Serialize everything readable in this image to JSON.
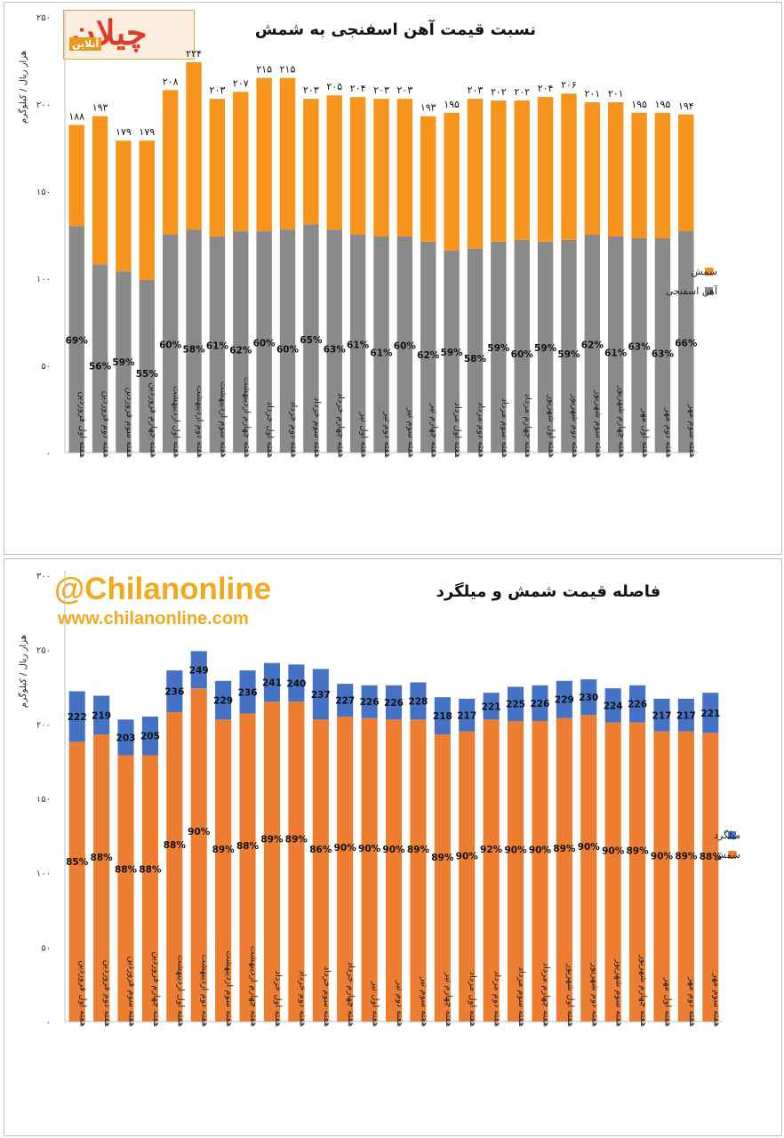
{
  "chart_data": [
    {
      "type": "bar",
      "stacked": true,
      "title": "نسبت قیمت آهن اسفنجی به شمش",
      "ylabel": "هزار ریال / کیلوگرم",
      "ylim": [
        0,
        250
      ],
      "yticks": [
        0,
        50,
        100,
        150,
        200,
        250
      ],
      "ytick_labels": [
        "۰",
        "۵۰",
        "۱۰۰",
        "۱۵۰",
        "۲۰۰",
        "۲۵۰"
      ],
      "grid": false,
      "legend_position": "right",
      "categories": [
        "هفته اول فروردین",
        "هفته دوم فروردین",
        "هفته سوم فروردین",
        "هفته چهارم فروردین",
        "هفته اول اردیبهشت",
        "هفته دوم اردیبهشت",
        "هفته سوم اردیبهشت",
        "هفته چهارم اردیبهشت",
        "هفته اول خرداد",
        "هفته دوم خرداد",
        "هفته سوم خرداد",
        "هفته چهارم خرداد",
        "هفته اول تیر",
        "هفته دوم تیر",
        "هفته سوم تیر",
        "هفته چهارم تیر",
        "هفته اول مرداد",
        "هفته دوم مرداد",
        "هفته سوم مرداد",
        "هفته چهارم مرداد",
        "هفته اول شهریور",
        "هفته دوم شهریور",
        "هفته سوم شهریور",
        "هفته چهارم شهریور",
        "هفته اول مهر",
        "هفته دوم مهر",
        "هفته سوم مهر"
      ],
      "totals": [
        188,
        193,
        179,
        179,
        208,
        224,
        203,
        207,
        215,
        215,
        203,
        205,
        204,
        203,
        203,
        193,
        195,
        203,
        202,
        202,
        204,
        206,
        201,
        201,
        195,
        195,
        194
      ],
      "total_labels": [
        "۱۸۸",
        "۱۹۳",
        "۱۷۹",
        "۱۷۹",
        "۲۰۸",
        "۲۲۴",
        "۲۰۳",
        "۲۰۷",
        "۲۱۵",
        "۲۱۵",
        "۲۰۳",
        "۲۰۵",
        "۲۰۴",
        "۲۰۳",
        "۲۰۳",
        "۱۹۳",
        "۱۹۵",
        "۲۰۳",
        "۲۰۲",
        "۲۰۲",
        "۲۰۴",
        "۲۰۶",
        "۲۰۱",
        "۲۰۱",
        "۱۹۵",
        "۱۹۵",
        "۱۹۴"
      ],
      "series": [
        {
          "name": "آهن اسفنجی",
          "color": "#8a8a8a",
          "values": [
            130,
            108,
            104,
            99,
            125,
            128,
            124,
            127,
            127,
            128,
            131,
            128,
            125,
            124,
            124,
            121,
            116,
            117,
            121,
            122,
            121,
            122,
            125,
            124,
            123,
            123,
            127
          ],
          "labels": [
            "69%",
            "56%",
            "59%",
            "55%",
            "60%",
            "58%",
            "61%",
            "62%",
            "60%",
            "60%",
            "65%",
            "63%",
            "61%",
            "61%",
            "60%",
            "62%",
            "59%",
            "58%",
            "59%",
            "60%",
            "59%",
            "59%",
            "62%",
            "61%",
            "63%",
            "63%",
            "66%"
          ]
        },
        {
          "name": "شمش",
          "color": "#f7941d",
          "values": [
            58,
            85,
            75,
            80,
            83,
            96,
            79,
            80,
            88,
            87,
            72,
            77,
            79,
            79,
            79,
            72,
            79,
            86,
            81,
            80,
            83,
            84,
            76,
            77,
            72,
            72,
            67
          ]
        }
      ],
      "branding": {
        "logo_text": "چیلان",
        "logo_subtext": "آنلاین"
      }
    },
    {
      "type": "bar",
      "stacked": true,
      "title": "فاصله  قیمت شمش و میلگرد",
      "ylabel": "هزار ریال / کیلوگرم",
      "ylim": [
        0,
        300
      ],
      "yticks": [
        0,
        50,
        100,
        150,
        200,
        250,
        300
      ],
      "ytick_labels": [
        "۰",
        "۵۰",
        "۱۰۰",
        "۱۵۰",
        "۲۰۰",
        "۲۵۰",
        "۳۰۰"
      ],
      "grid": false,
      "legend_position": "right",
      "categories": [
        "هفته اول فروردین",
        "هفته دوم فروردین",
        "هفته سوم فروردین",
        "هفته چهارم فروردین",
        "هفته اول اردیبهشت",
        "هفته دوم اردیبهشت",
        "هفته سوم اردیبهشت",
        "هفته چهارم اردیبهشت",
        "هفته اول خرداد",
        "هفته دوم خرداد",
        "هفته سوم خرداد",
        "هفته چهارم خرداد",
        "هفته اول تیر",
        "هفته دوم تیر",
        "هفته سوم تیر",
        "هفته چهارم تیر",
        "هفته اول مرداد",
        "هفته دوم مرداد",
        "هفته سوم مرداد",
        "هفته چهارم مرداد",
        "هفته اول شهریور",
        "هفته دوم شهریور",
        "هفته سوم شهریور",
        "هفته چهارم شهریور",
        "هفته اول مهر",
        "هفته دوم مهر",
        "هفته سوم مهر"
      ],
      "totals": [
        222,
        219,
        203,
        205,
        236,
        249,
        229,
        236,
        241,
        240,
        237,
        227,
        226,
        226,
        228,
        218,
        217,
        221,
        225,
        226,
        229,
        230,
        224,
        226,
        217,
        217,
        221
      ],
      "total_labels": [
        "222",
        "219",
        "203",
        "205",
        "236",
        "249",
        "229",
        "236",
        "241",
        "240",
        "237",
        "227",
        "226",
        "226",
        "228",
        "218",
        "217",
        "221",
        "225",
        "226",
        "229",
        "230",
        "224",
        "226",
        "217",
        "217",
        "221"
      ],
      "series": [
        {
          "name": "شمش",
          "color": "#ed7d31",
          "values": [
            188,
            193,
            179,
            179,
            208,
            224,
            203,
            207,
            215,
            215,
            203,
            205,
            204,
            203,
            203,
            193,
            195,
            203,
            202,
            202,
            204,
            206,
            201,
            201,
            195,
            195,
            194
          ],
          "labels": [
            "85%",
            "88%",
            "88%",
            "88%",
            "88%",
            "90%",
            "89%",
            "88%",
            "89%",
            "89%",
            "86%",
            "90%",
            "90%",
            "90%",
            "89%",
            "89%",
            "90%",
            "92%",
            "90%",
            "90%",
            "89%",
            "90%",
            "90%",
            "89%",
            "90%",
            "89%",
            "88%"
          ]
        },
        {
          "name": "میلگرد",
          "color": "#4472c4",
          "values": [
            34,
            26,
            24,
            26,
            28,
            25,
            26,
            29,
            26,
            25,
            34,
            22,
            22,
            23,
            25,
            25,
            22,
            18,
            23,
            24,
            25,
            24,
            23,
            25,
            22,
            22,
            27
          ]
        }
      ],
      "branding": {
        "handle": "@Chilanonline",
        "site": "www.chilanonline.com"
      }
    }
  ]
}
